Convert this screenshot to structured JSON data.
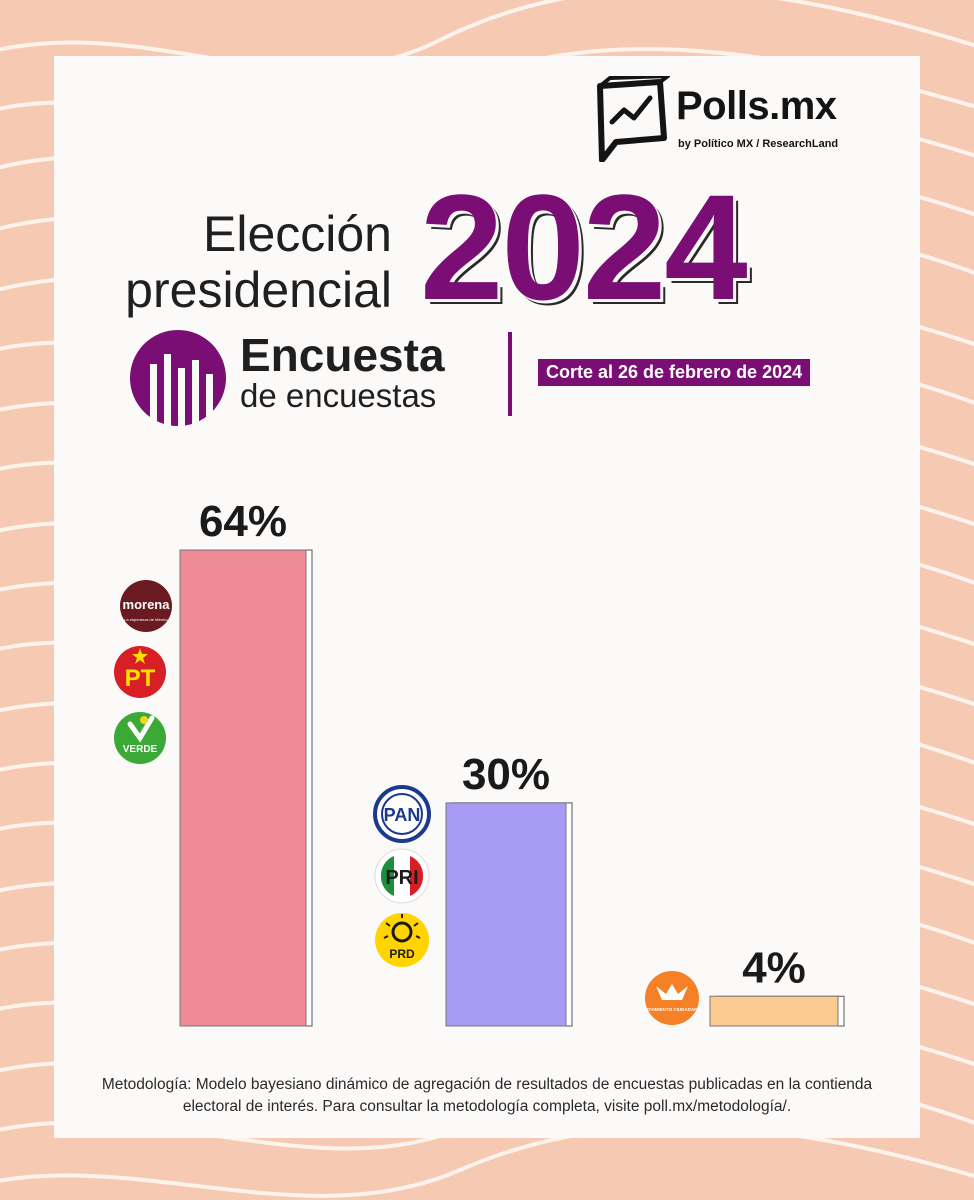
{
  "brand": {
    "name": "Polls.mx",
    "byline": "by Político MX / ResearchLand"
  },
  "header": {
    "title_line1": "Elección",
    "title_line2": "presidencial",
    "year": "2024",
    "survey_title": "Encuesta",
    "survey_subtitle": "de encuestas",
    "cutoff": "Corte al 26 de febrero de 2024"
  },
  "parties": {
    "morena": "morena",
    "morena_tag": "La esperanza de México",
    "pt": "PT",
    "verde": "VERDE",
    "pan": "PAN",
    "pri": "PRI",
    "prd": "PRD",
    "mc": "MOVIMIENTO CIUDADANO"
  },
  "chart_data": {
    "type": "bar",
    "categories": [
      "Morena-PT-Verde",
      "PAN-PRI-PRD",
      "Movimiento Ciudadano"
    ],
    "values": [
      64,
      30,
      4
    ],
    "value_labels": [
      "64%",
      "30%",
      "4%"
    ],
    "ylim": [
      0,
      64
    ],
    "grid": false,
    "colors": [
      "#ef8a97",
      "#a79bf6",
      "#fccb92"
    ]
  },
  "footer": {
    "methodology": "Metodología: Modelo bayesiano dinámico de agregación de resultados de encuestas publicadas en la contienda electoral de interés. Para consultar la metodología completa, visite poll.mx/metodología/."
  }
}
